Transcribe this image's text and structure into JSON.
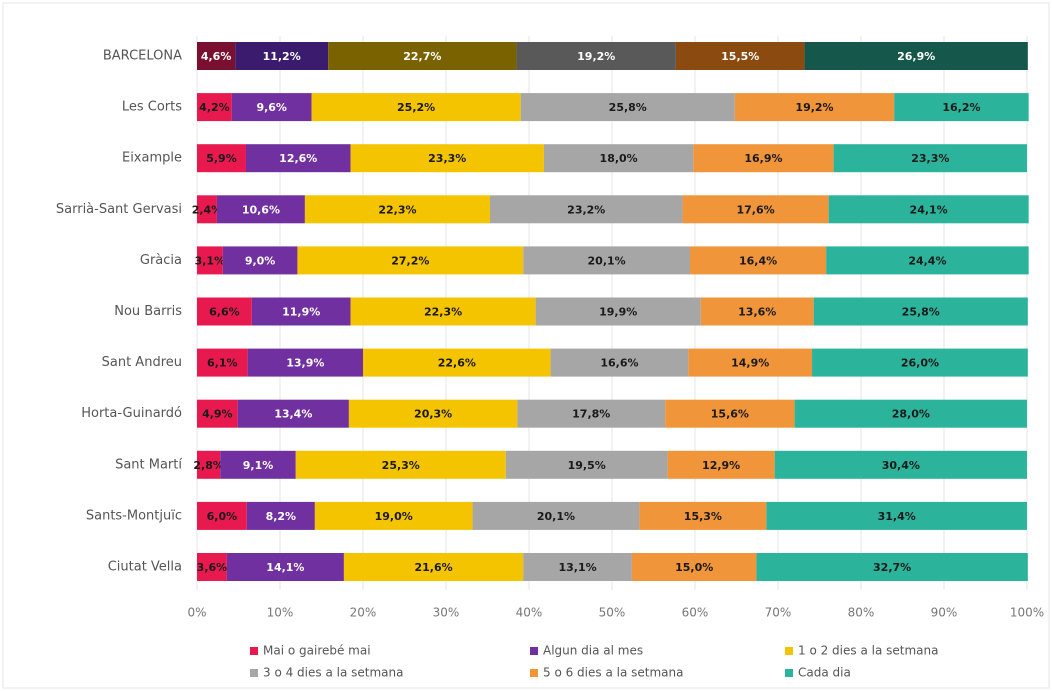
{
  "chart_data": {
    "type": "stacked-bar-horizontal",
    "categories": [
      "BARCELONA",
      "Les Corts",
      "Eixample",
      "Sarrià-Sant Gervasi",
      "Gràcia",
      "Nou Barris",
      "Sant Andreu",
      "Horta-Guinardó",
      "Sant Martí",
      "Sants-Montjuïc",
      "Ciutat Vella"
    ],
    "series": [
      {
        "name": "Mai o gairebé mai",
        "color": "#e8194f",
        "first_color": "#7a0f30",
        "label_color": "#1a1a1a",
        "values": [
          4.6,
          4.2,
          5.9,
          2.4,
          3.1,
          6.6,
          6.1,
          4.9,
          2.8,
          6.0,
          3.6
        ],
        "value_labels": [
          "4,6%",
          "4,2%",
          "5,9%",
          "2,4%",
          "3,1%",
          "6,6%",
          "6,1%",
          "4,9%",
          "2,8%",
          "6,0%",
          "3,6%"
        ]
      },
      {
        "name": "Algun dia al mes",
        "color": "#7030a0",
        "first_color": "#3b1b6e",
        "label_color": "#ffffff",
        "values": [
          11.2,
          9.6,
          12.6,
          10.6,
          9.0,
          11.9,
          13.9,
          13.4,
          9.1,
          8.2,
          14.1
        ],
        "value_labels": [
          "11,2%",
          "9,6%",
          "12,6%",
          "10,6%",
          "9,0%",
          "11,9%",
          "13,9%",
          "13,4%",
          "9,1%",
          "8,2%",
          "14,1%"
        ]
      },
      {
        "name": "1 o 2 dies a la setmana",
        "color": "#f5c400",
        "first_color": "#7a6200",
        "label_color": "#1a1a1a",
        "values": [
          22.7,
          25.2,
          23.3,
          22.3,
          27.2,
          22.3,
          22.6,
          20.3,
          25.3,
          19.0,
          21.6
        ],
        "value_labels": [
          "22,7%",
          "25,2%",
          "23,3%",
          "22,3%",
          "27,2%",
          "22,3%",
          "22,6%",
          "20,3%",
          "25,3%",
          "19,0%",
          "21,6%"
        ]
      },
      {
        "name": "3 o 4 dies a la setmana",
        "color": "#a6a6a6",
        "first_color": "#595959",
        "label_color": "#1a1a1a",
        "values": [
          19.2,
          25.8,
          18.0,
          23.2,
          20.1,
          19.9,
          16.6,
          17.8,
          19.5,
          20.1,
          13.1
        ],
        "value_labels": [
          "19,2%",
          "25,8%",
          "18,0%",
          "23,2%",
          "20,1%",
          "19,9%",
          "16,6%",
          "17,8%",
          "19,5%",
          "20,1%",
          "13,1%"
        ]
      },
      {
        "name": "5 o 6 dies a la setmana",
        "color": "#f0953a",
        "first_color": "#8a4a10",
        "label_color": "#1a1a1a",
        "values": [
          15.5,
          19.2,
          16.9,
          17.6,
          16.4,
          13.6,
          14.9,
          15.6,
          12.9,
          15.3,
          15.0
        ],
        "value_labels": [
          "15,5%",
          "19,2%",
          "16,9%",
          "17,6%",
          "16,4%",
          "13,6%",
          "14,9%",
          "15,6%",
          "12,9%",
          "15,3%",
          "15,0%"
        ]
      },
      {
        "name": "Cada dia",
        "color": "#2bb39b",
        "first_color": "#15574a",
        "label_color": "#1a1a1a",
        "values": [
          26.9,
          16.2,
          23.3,
          24.1,
          24.4,
          25.8,
          26.0,
          28.0,
          30.4,
          31.4,
          32.7
        ],
        "value_labels": [
          "26,9%",
          "16,2%",
          "23,3%",
          "24,1%",
          "24,4%",
          "25,8%",
          "26,0%",
          "28,0%",
          "30,4%",
          "31,4%",
          "32,7%"
        ]
      }
    ],
    "xlim": [
      0,
      100
    ],
    "xticks": [
      {
        "value": 0,
        "label": "0%"
      },
      {
        "value": 10,
        "label": "10%"
      },
      {
        "value": 20,
        "label": "20%"
      },
      {
        "value": 30,
        "label": "30%"
      },
      {
        "value": 40,
        "label": "40%"
      },
      {
        "value": 50,
        "label": "50%"
      },
      {
        "value": 60,
        "label": "60%"
      },
      {
        "value": 70,
        "label": "70%"
      },
      {
        "value": 80,
        "label": "80%"
      },
      {
        "value": 90,
        "label": "90%"
      },
      {
        "value": 100,
        "label": "100%"
      }
    ],
    "grid": true,
    "legend": "bottom"
  }
}
